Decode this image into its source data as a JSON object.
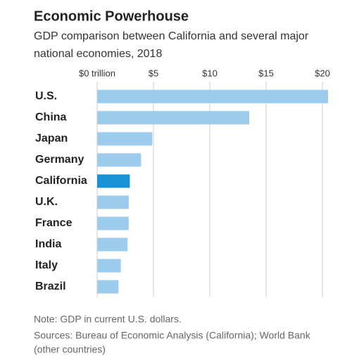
{
  "chart_data": {
    "type": "hbar",
    "title": "Economic Powerhouse",
    "subtitle": [
      "GDP comparison between California and several major",
      "national economies, 2018"
    ],
    "categories": [
      "U.S.",
      "China",
      "Japan",
      "Germany",
      "California",
      "U.K.",
      "France",
      "India",
      "Italy",
      "Brazil"
    ],
    "values": [
      20.5,
      13.5,
      4.9,
      3.9,
      2.9,
      2.8,
      2.8,
      2.7,
      2.1,
      1.9
    ],
    "colors": [
      "#9dcbee",
      "#9dcbee",
      "#9dcbee",
      "#9dcbee",
      "#1b92d8",
      "#9dcbee",
      "#9dcbee",
      "#9dcbee",
      "#9dcbee",
      "#9dcbee"
    ],
    "xlim": [
      0,
      20.5
    ],
    "xticks": [
      {
        "value": 0,
        "label": "$0 trillion"
      },
      {
        "value": 5,
        "label": "$5"
      },
      {
        "value": 10,
        "label": "$10"
      },
      {
        "value": 15,
        "label": "$15"
      },
      {
        "value": 20,
        "label": "$20"
      }
    ],
    "grid": true,
    "notes": [
      "Note: GDP in current U.S. dollars.",
      "Sources: Bureau of Economic Analysis (California); World Bank",
      "(other countries)"
    ]
  }
}
